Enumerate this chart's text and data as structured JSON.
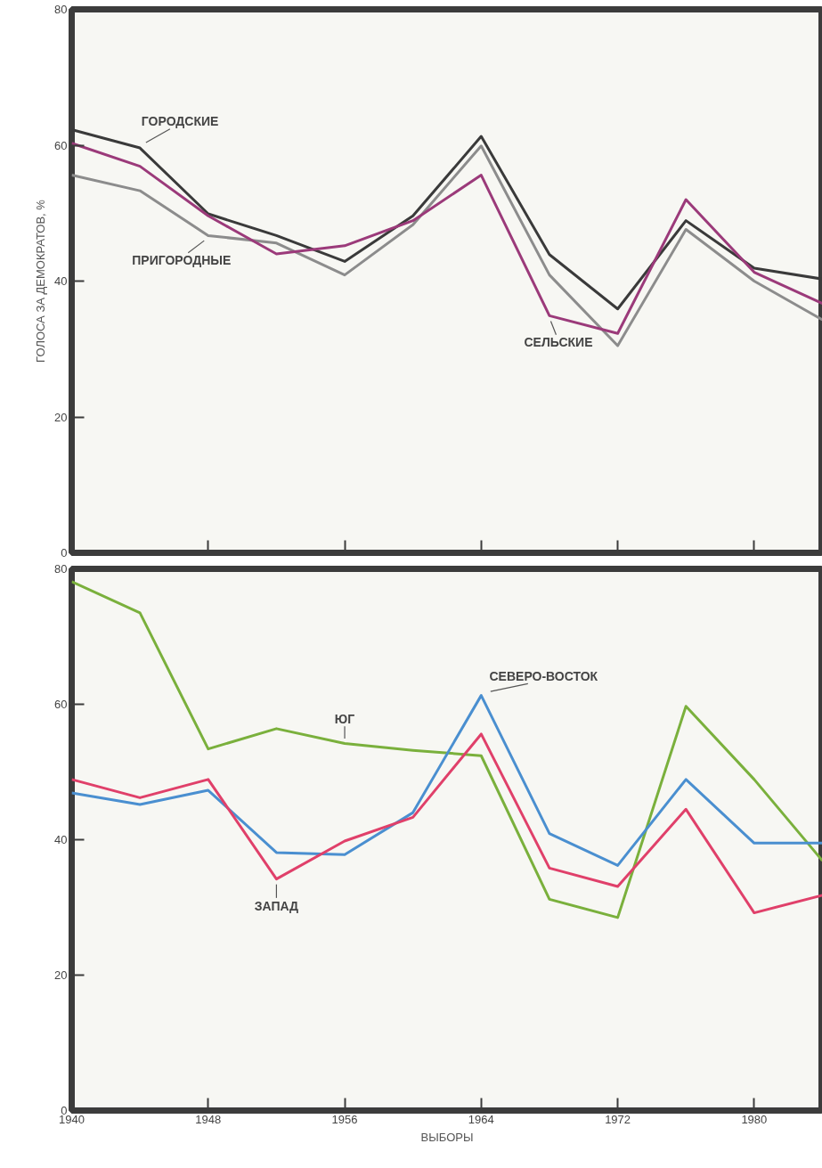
{
  "chart_data": [
    {
      "type": "line",
      "ylabel": "ГОЛОСА ЗА ДЕМОКРАТОВ, %",
      "x": [
        1940,
        1944,
        1948,
        1952,
        1956,
        1960,
        1964,
        1968,
        1972,
        1976,
        1980,
        1984
      ],
      "xlim": [
        1940,
        1984
      ],
      "ylim": [
        0,
        80
      ],
      "yticks": [
        0,
        20,
        40,
        60,
        80
      ],
      "xticks": [
        1940,
        1948,
        1956,
        1964,
        1972,
        1980
      ],
      "tick_labels": "y",
      "grid": false,
      "marker": "none",
      "line_style": "solid",
      "series": [
        {
          "name": "ГОРОДСКИЕ",
          "color": "#3a3a3a",
          "values": [
            62.3,
            59.6,
            49.9,
            46.7,
            42.9,
            49.6,
            61.3,
            43.9,
            35.9,
            48.9,
            41.9,
            40.3
          ]
        },
        {
          "name": "ПРИГОРОДНЫЕ",
          "color": "#8c8c8c",
          "values": [
            55.6,
            53.3,
            46.7,
            45.6,
            40.9,
            48.3,
            59.9,
            40.9,
            30.5,
            47.6,
            40.0,
            34.3
          ]
        },
        {
          "name": "СЕЛЬСКИЕ",
          "color": "#9b3a7a",
          "values": [
            60.3,
            56.9,
            49.6,
            44.0,
            45.2,
            48.9,
            55.6,
            34.9,
            32.3,
            52.0,
            41.3,
            36.7
          ]
        }
      ]
    },
    {
      "type": "line",
      "xlabel": "ВЫБОРЫ",
      "x": [
        1940,
        1944,
        1948,
        1952,
        1956,
        1960,
        1964,
        1968,
        1972,
        1976,
        1980,
        1984
      ],
      "xlim": [
        1940,
        1984
      ],
      "ylim": [
        0,
        80
      ],
      "yticks": [
        0,
        20,
        40,
        60,
        80
      ],
      "xticks": [
        1940,
        1948,
        1956,
        1964,
        1972,
        1980
      ],
      "grid": false,
      "marker": "none",
      "line_style": "solid",
      "series": [
        {
          "name": "ЮГ",
          "color": "#7ab03c",
          "values": [
            78.1,
            73.5,
            53.4,
            56.4,
            54.2,
            53.2,
            52.4,
            31.2,
            28.5,
            59.7,
            48.9,
            36.9
          ]
        },
        {
          "name": "СЕВЕРО-ВОСТОК",
          "color": "#4a8fd0",
          "values": [
            46.9,
            45.2,
            47.3,
            38.1,
            37.8,
            44.0,
            61.3,
            40.9,
            36.2,
            48.9,
            39.5,
            39.5
          ]
        },
        {
          "name": "ЗАПАД",
          "color": "#e0406a",
          "values": [
            48.9,
            46.2,
            48.9,
            34.2,
            39.8,
            43.3,
            55.6,
            35.8,
            33.1,
            44.5,
            29.2,
            31.8
          ]
        }
      ]
    }
  ]
}
